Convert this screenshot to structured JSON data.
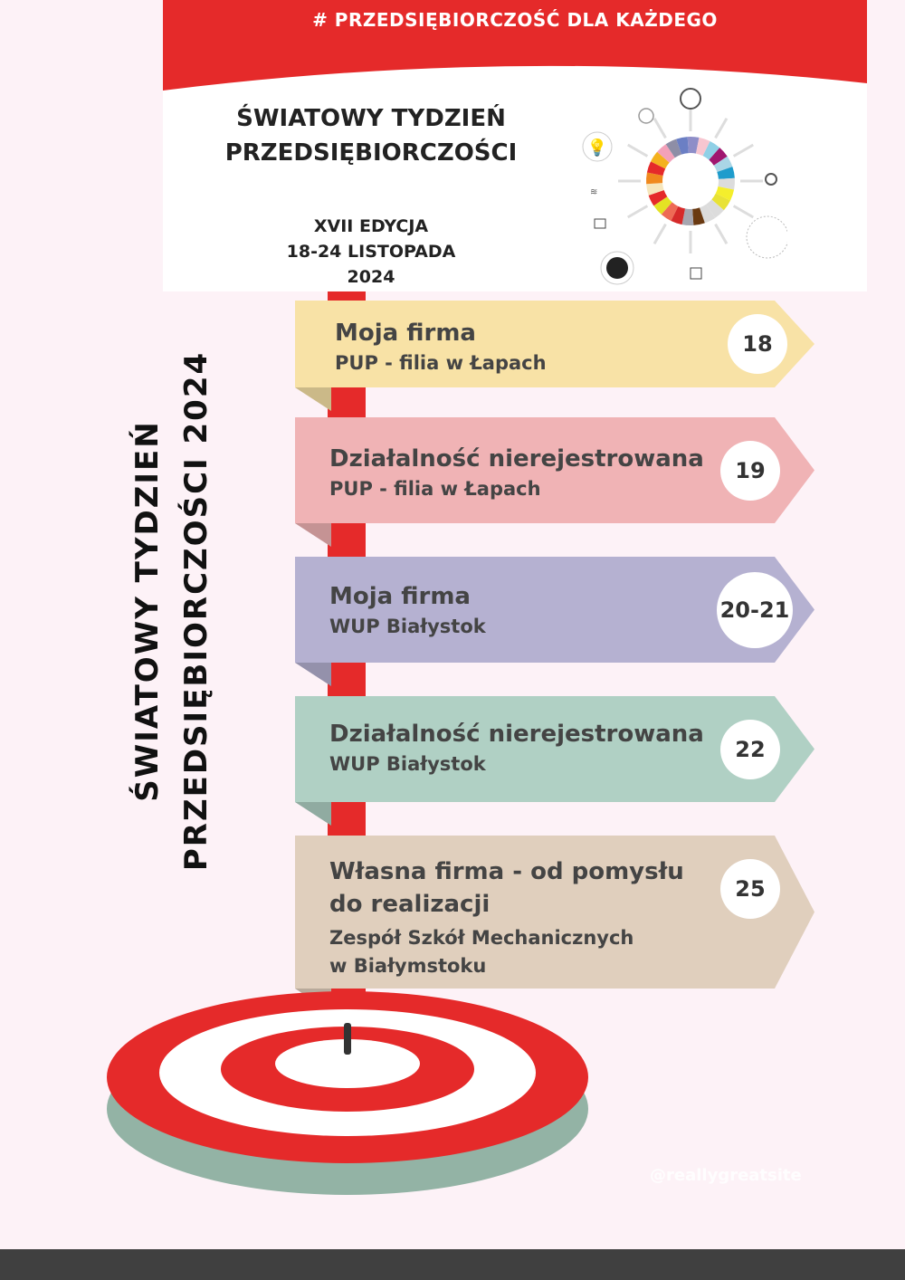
{
  "header": {
    "hashtag": "# PRZEDSIĘBIORCZOŚĆ  DLA  KAŻDEGO",
    "title_line1": "ŚWIATOWY  TYDZIEŃ",
    "title_line2": "PRZEDSIĘBIORCZOŚCI",
    "edition": "XVII EDYCJA",
    "dates": "18-24 LISTOPADA",
    "year": "2024",
    "logo_icons": [
      "gear-icon",
      "people-icon",
      "lightbulb-icon",
      "wifi-icon",
      "factory-icon",
      "globe-icon",
      "ai-chip-icon",
      "chat-bubbles-icon",
      "network-icon"
    ]
  },
  "side_title": {
    "line1": "ŚWIATOWY TYDZIEŃ",
    "line2": "PRZEDSIĘBIORCZOŚCI 2024"
  },
  "events": [
    {
      "title": "Moja firma",
      "place": "PUP - filia w Łapach",
      "day": "18",
      "color": "#f8e2a6"
    },
    {
      "title": "Działalność nierejestrowana",
      "place": "PUP - filia w Łapach",
      "day": "19",
      "color": "#f0b3b5"
    },
    {
      "title": "Moja firma",
      "place": "WUP Białystok",
      "day": "20-21",
      "color": "#b5b1d1"
    },
    {
      "title": "Działalność nierejestrowana",
      "place": "WUP Białystok",
      "day": "22",
      "color": "#b0d0c4"
    },
    {
      "title": "Własna firma - od pomysłu do realizacji",
      "place": "Zespół Szkół Mechanicznych w Białymstoku",
      "day": "25",
      "color": "#e0cfbd"
    }
  ],
  "watermark": "@reallygreatsite",
  "colors": {
    "accent": "#e52a2a",
    "background": "#fdf2f7",
    "target_shadow": "#93b3a5"
  }
}
